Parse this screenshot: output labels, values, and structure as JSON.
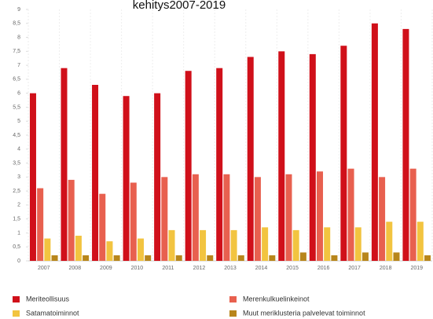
{
  "chart_data": {
    "type": "bar",
    "title": "kehitys2007-2019",
    "categories": [
      "2007",
      "2008",
      "2009",
      "2010",
      "2011",
      "2012",
      "2013",
      "2014",
      "2015",
      "2016",
      "2017",
      "2018",
      "2019"
    ],
    "series": [
      {
        "name": "Meriteollisuus",
        "color": "#d0101a",
        "values": [
          6.0,
          6.9,
          6.3,
          5.9,
          6.0,
          6.8,
          6.9,
          7.3,
          7.5,
          7.4,
          7.7,
          8.5,
          8.3
        ]
      },
      {
        "name": "Merenkulkuelinkeinot",
        "color": "#e8604f",
        "values": [
          2.6,
          2.9,
          2.4,
          2.8,
          3.0,
          3.1,
          3.1,
          3.0,
          3.1,
          3.2,
          3.3,
          3.0,
          3.3
        ]
      },
      {
        "name": "Satamatoiminnot",
        "color": "#f2c440",
        "values": [
          0.8,
          0.9,
          0.7,
          0.8,
          1.1,
          1.1,
          1.1,
          1.2,
          1.1,
          1.2,
          1.2,
          1.4,
          1.4
        ]
      },
      {
        "name": "Muut meriklusteria palvelevat toiminnot",
        "color": "#b8861b",
        "values": [
          0.2,
          0.2,
          0.2,
          0.2,
          0.2,
          0.2,
          0.2,
          0.2,
          0.3,
          0.2,
          0.3,
          0.3,
          0.2
        ]
      }
    ],
    "ylim": [
      0,
      9
    ],
    "yticks": [
      0,
      {
        "value": 0.5,
        "label": "0,5"
      },
      1,
      {
        "value": 1.5,
        "label": "1,5"
      },
      2,
      {
        "value": 2.5,
        "label": "2,5"
      },
      3,
      {
        "value": 3.5,
        "label": "3,5"
      },
      4,
      {
        "value": 4.5,
        "label": "4,5"
      },
      5,
      {
        "value": 5.5,
        "label": "5,5"
      },
      6,
      {
        "value": 6.5,
        "label": "6,5"
      },
      7,
      {
        "value": 7.5,
        "label": "7,5"
      },
      8,
      {
        "value": 8.5,
        "label": "8,5"
      },
      9
    ]
  }
}
